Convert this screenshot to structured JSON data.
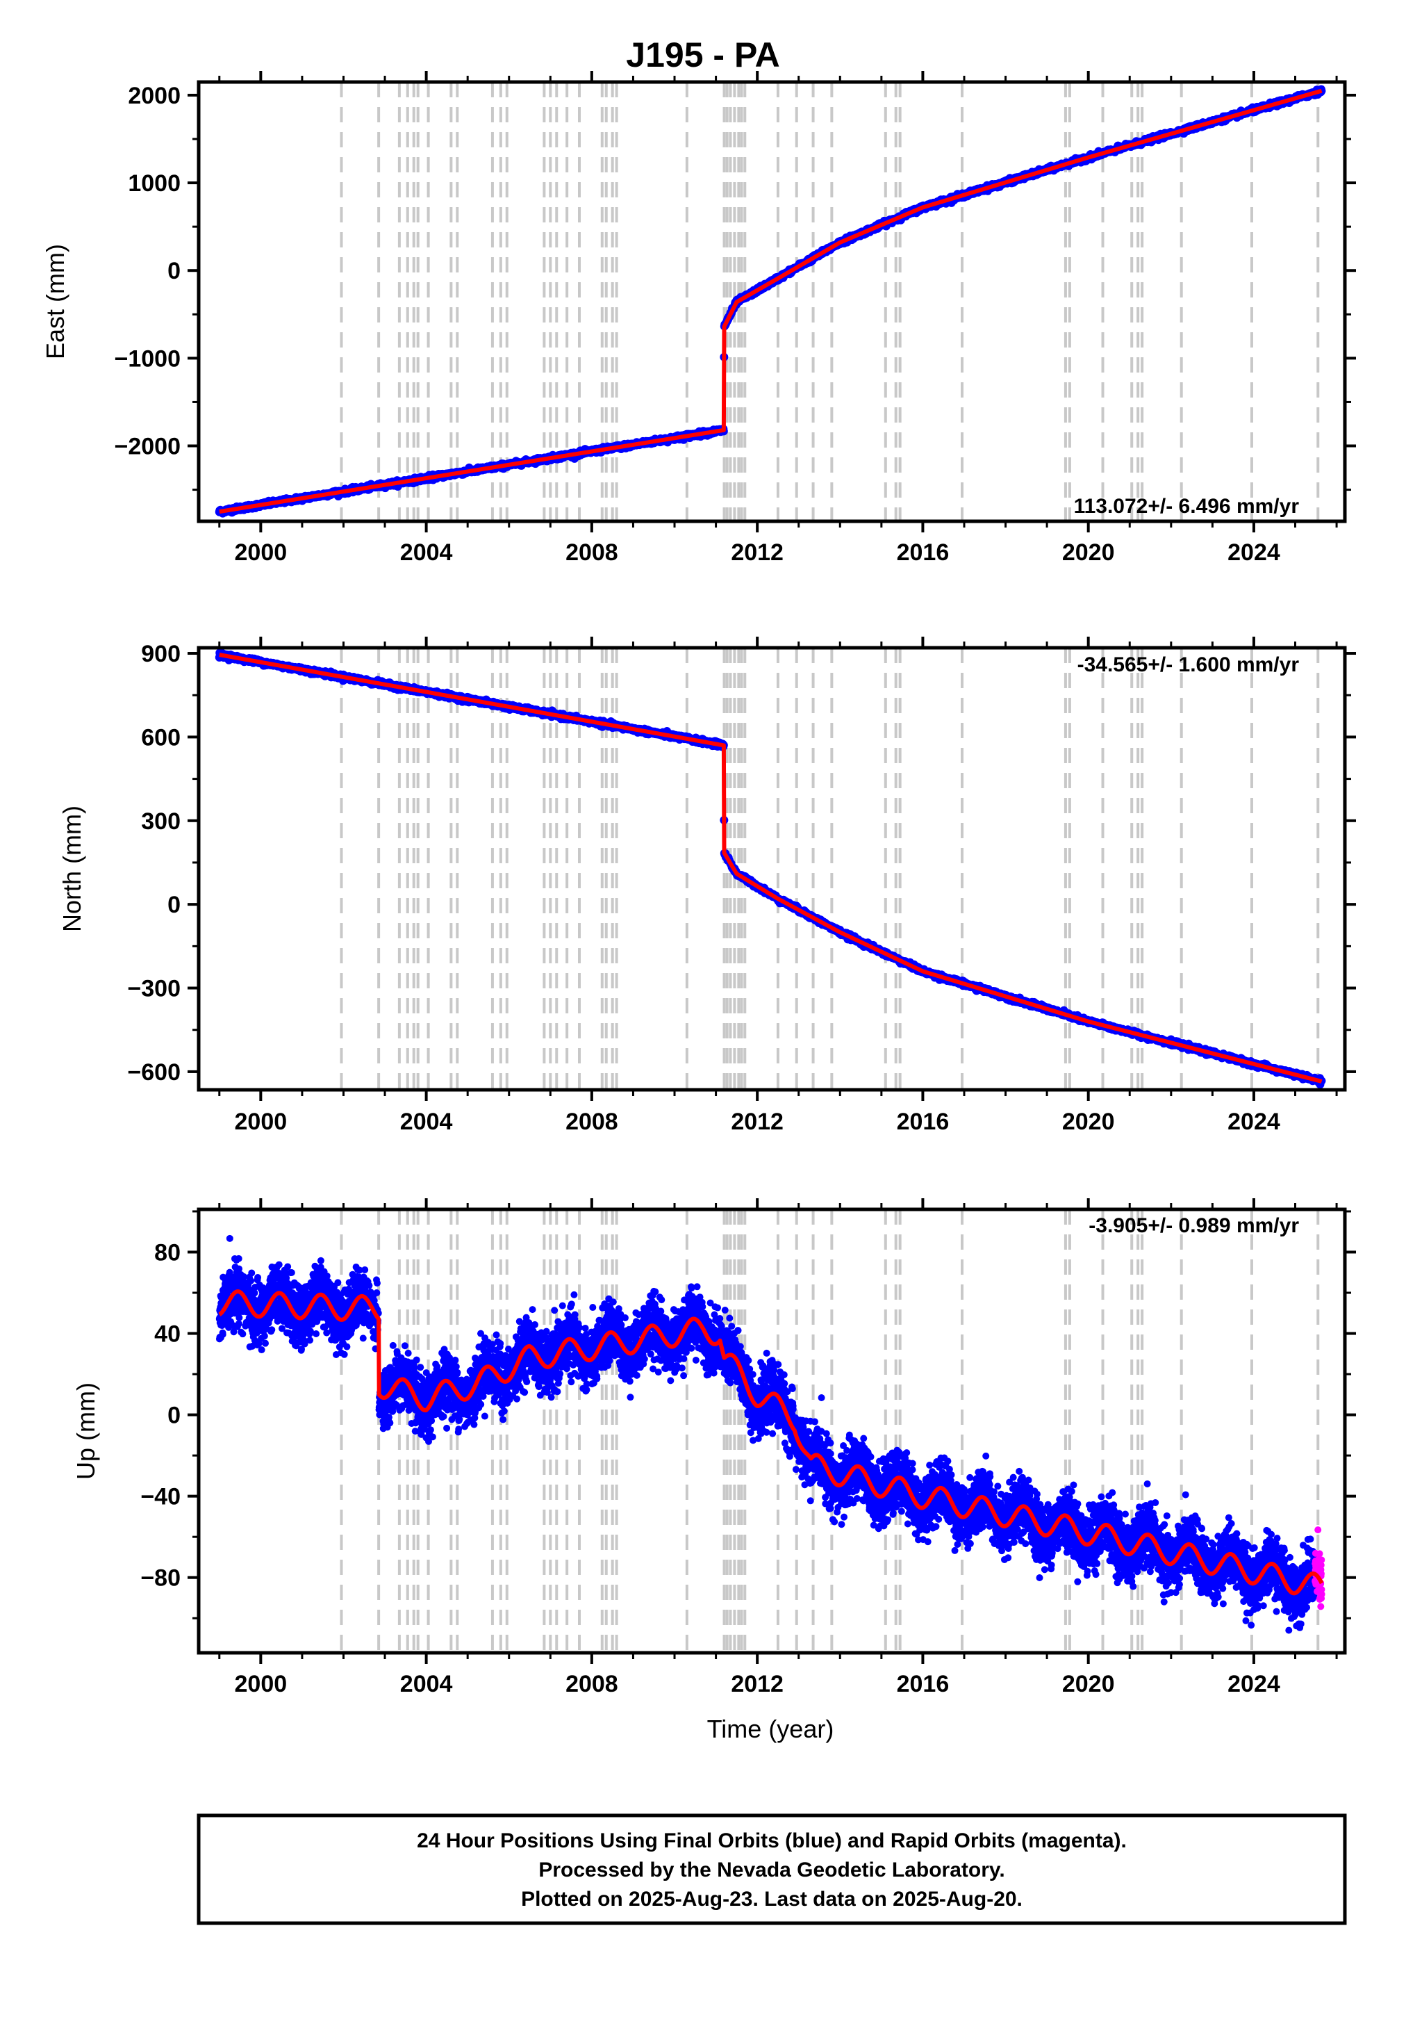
{
  "title": "J195 - PA",
  "x_axis_label": "Time (year)",
  "colors": {
    "final_orbits": "#0000ff",
    "rapid_orbits": "#ff00ff",
    "model": "#ff0000",
    "event_lines": "#c8c8c8",
    "frame": "#000000"
  },
  "event_lines_years": [
    2001.95,
    2002.85,
    2003.35,
    2003.55,
    2003.7,
    2003.8,
    2004.05,
    2004.6,
    2004.75,
    2005.6,
    2005.8,
    2005.95,
    2006.85,
    2007.0,
    2007.15,
    2007.4,
    2007.7,
    2008.25,
    2008.35,
    2008.5,
    2008.6,
    2010.3,
    2011.2,
    2011.27,
    2011.35,
    2011.45,
    2011.55,
    2011.62,
    2011.7,
    2012.5,
    2012.95,
    2013.35,
    2013.8,
    2015.1,
    2015.35,
    2015.45,
    2016.95,
    2019.45,
    2019.55,
    2020.35,
    2021.05,
    2021.2,
    2021.3,
    2022.25,
    2023.95,
    2025.55
  ],
  "chart_data": [
    {
      "type": "scatter",
      "name": "east",
      "ylabel": "East (mm)",
      "rate_label": "113.072+/- 6.496 mm/yr",
      "xlim": [
        1998.5,
        2026.2
      ],
      "ylim": [
        -2860,
        2150
      ],
      "x_ticks": [
        2000,
        2004,
        2008,
        2012,
        2016,
        2020,
        2024
      ],
      "x_tick_labels": [
        "2000",
        "2004",
        "2008",
        "2012",
        "2016",
        "2020",
        "2024"
      ],
      "y_ticks": [
        -2000,
        -1000,
        0,
        1000,
        2000
      ],
      "y_tick_labels": [
        "−2000",
        "−1000",
        "0",
        "1000",
        "2000"
      ],
      "data_range": [
        1999.0,
        2025.64
      ],
      "segments": [
        {
          "t0": 1999.0,
          "t1": 2011.19,
          "y0": -2750,
          "y1": -1820
        },
        {
          "t0": 2011.19,
          "t1": 2011.2,
          "y0": -1820,
          "y1": -640
        },
        {
          "t0": 2011.2,
          "t1": 2011.5,
          "y0": -640,
          "y1": -360
        },
        {
          "t0": 2011.5,
          "t1": 2012.5,
          "y0": -360,
          "y1": -90
        },
        {
          "t0": 2012.5,
          "t1": 2014.0,
          "y0": -90,
          "y1": 320
        },
        {
          "t0": 2014.0,
          "t1": 2016.0,
          "y0": 320,
          "y1": 720
        },
        {
          "t0": 2016.0,
          "t1": 2020.0,
          "y0": 720,
          "y1": 1290
        },
        {
          "t0": 2020.0,
          "t1": 2025.64,
          "y0": 1290,
          "y1": 2050
        }
      ]
    },
    {
      "type": "scatter",
      "name": "north",
      "ylabel": "North (mm)",
      "rate_label": "-34.565+/- 1.600 mm/yr",
      "xlim": [
        1998.5,
        2026.2
      ],
      "ylim": [
        -665,
        920
      ],
      "x_ticks": [
        2000,
        2004,
        2008,
        2012,
        2016,
        2020,
        2024
      ],
      "x_tick_labels": [
        "2000",
        "2004",
        "2008",
        "2012",
        "2016",
        "2020",
        "2024"
      ],
      "y_ticks": [
        -600,
        -300,
        0,
        300,
        600,
        900
      ],
      "y_tick_labels": [
        "−600",
        "−300",
        "0",
        "300",
        "600",
        "900"
      ],
      "data_range": [
        1999.0,
        2025.64
      ],
      "segments": [
        {
          "t0": 1999.0,
          "t1": 2011.19,
          "y0": 895,
          "y1": 570
        },
        {
          "t0": 2011.19,
          "t1": 2011.2,
          "y0": 570,
          "y1": 185
        },
        {
          "t0": 2011.2,
          "t1": 2011.5,
          "y0": 185,
          "y1": 110
        },
        {
          "t0": 2011.5,
          "t1": 2012.5,
          "y0": 110,
          "y1": 20
        },
        {
          "t0": 2012.5,
          "t1": 2014.0,
          "y0": 20,
          "y1": -100
        },
        {
          "t0": 2014.0,
          "t1": 2016.0,
          "y0": -100,
          "y1": -240
        },
        {
          "t0": 2016.0,
          "t1": 2020.0,
          "y0": -240,
          "y1": -420
        },
        {
          "t0": 2020.0,
          "t1": 2025.64,
          "y0": -420,
          "y1": -635
        }
      ]
    },
    {
      "type": "scatter",
      "name": "up",
      "ylabel": "Up (mm)",
      "rate_label": "-3.905+/- 0.989 mm/yr",
      "xlim": [
        1998.5,
        2026.2
      ],
      "ylim": [
        -117,
        101
      ],
      "x_ticks": [
        2000,
        2004,
        2008,
        2012,
        2016,
        2020,
        2024
      ],
      "x_tick_labels": [
        "2000",
        "2004",
        "2008",
        "2012",
        "2016",
        "2020",
        "2024"
      ],
      "y_ticks": [
        -80,
        -40,
        0,
        40,
        80
      ],
      "y_tick_labels": [
        "−80",
        "−40",
        "0",
        "40",
        "80"
      ],
      "data_range": [
        1999.0,
        2025.64
      ],
      "rapid_range": [
        2025.48,
        2025.64
      ],
      "noise_mm": 7,
      "seasonal_amplitude_mm": 6,
      "segments": [
        {
          "t0": 1999.0,
          "t1": 2002.85,
          "y0": 55,
          "y1": 52
        },
        {
          "t0": 2002.85,
          "t1": 2002.86,
          "y0": 52,
          "y1": 15
        },
        {
          "t0": 2002.86,
          "t1": 2004.0,
          "y0": 15,
          "y1": 8
        },
        {
          "t0": 2004.0,
          "t1": 2005.2,
          "y0": 8,
          "y1": 15
        },
        {
          "t0": 2005.2,
          "t1": 2006.5,
          "y0": 15,
          "y1": 28
        },
        {
          "t0": 2006.5,
          "t1": 2010.7,
          "y0": 28,
          "y1": 42
        },
        {
          "t0": 2010.7,
          "t1": 2011.1,
          "y0": 42,
          "y1": 40
        },
        {
          "t0": 2011.1,
          "t1": 2011.2,
          "y0": 40,
          "y1": 28
        },
        {
          "t0": 2011.2,
          "t1": 2012.0,
          "y0": 28,
          "y1": 10
        },
        {
          "t0": 2012.0,
          "t1": 2012.9,
          "y0": 10,
          "y1": -2
        },
        {
          "t0": 2012.9,
          "t1": 2013.3,
          "y0": -2,
          "y1": -25
        },
        {
          "t0": 2013.3,
          "t1": 2016.0,
          "y0": -25,
          "y1": -40
        },
        {
          "t0": 2016.0,
          "t1": 2020.0,
          "y0": -40,
          "y1": -58
        },
        {
          "t0": 2020.0,
          "t1": 2025.64,
          "y0": -58,
          "y1": -85
        }
      ]
    }
  ],
  "footer": {
    "line1": "24 Hour Positions Using Final Orbits (blue) and Rapid Orbits (magenta).",
    "line2": "Processed by the Nevada Geodetic Laboratory.",
    "line3": "Plotted on 2025-Aug-23. Last data on 2025-Aug-20."
  }
}
